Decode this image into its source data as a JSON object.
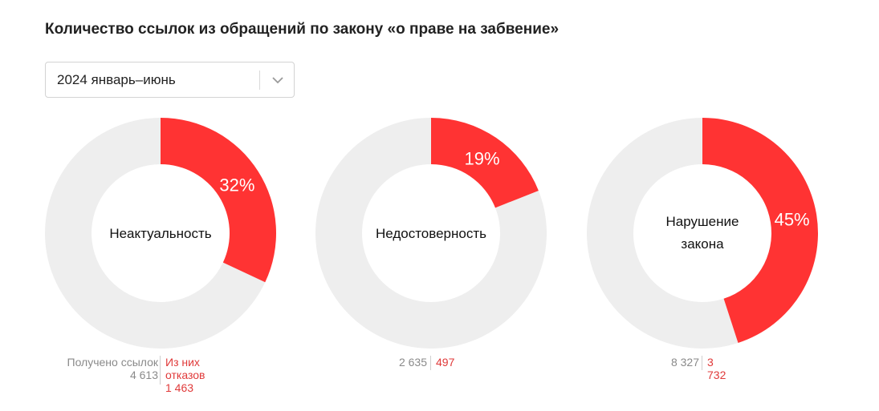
{
  "title": "Количество ссылок из обращений по закону «о праве на забвение»",
  "period_select": {
    "value": "2024 январь–июнь"
  },
  "labels": {
    "received": "Получено ссылок",
    "refused": "Из них отказов"
  },
  "colors": {
    "refused": "#ff3333",
    "remainder": "#eeeeee"
  },
  "chart_data": [
    {
      "type": "pie",
      "center_label": "Неактуальность",
      "percent": 32,
      "percent_label": "32%",
      "received": "4 613",
      "refused": "1 463"
    },
    {
      "type": "pie",
      "center_label": "Недостоверность",
      "percent": 19,
      "percent_label": "19%",
      "received": "2 635",
      "refused": "497"
    },
    {
      "type": "pie",
      "center_label": "Нарушение закона",
      "percent": 45,
      "percent_label": "45%",
      "received": "8 327",
      "refused": "3 732"
    }
  ]
}
